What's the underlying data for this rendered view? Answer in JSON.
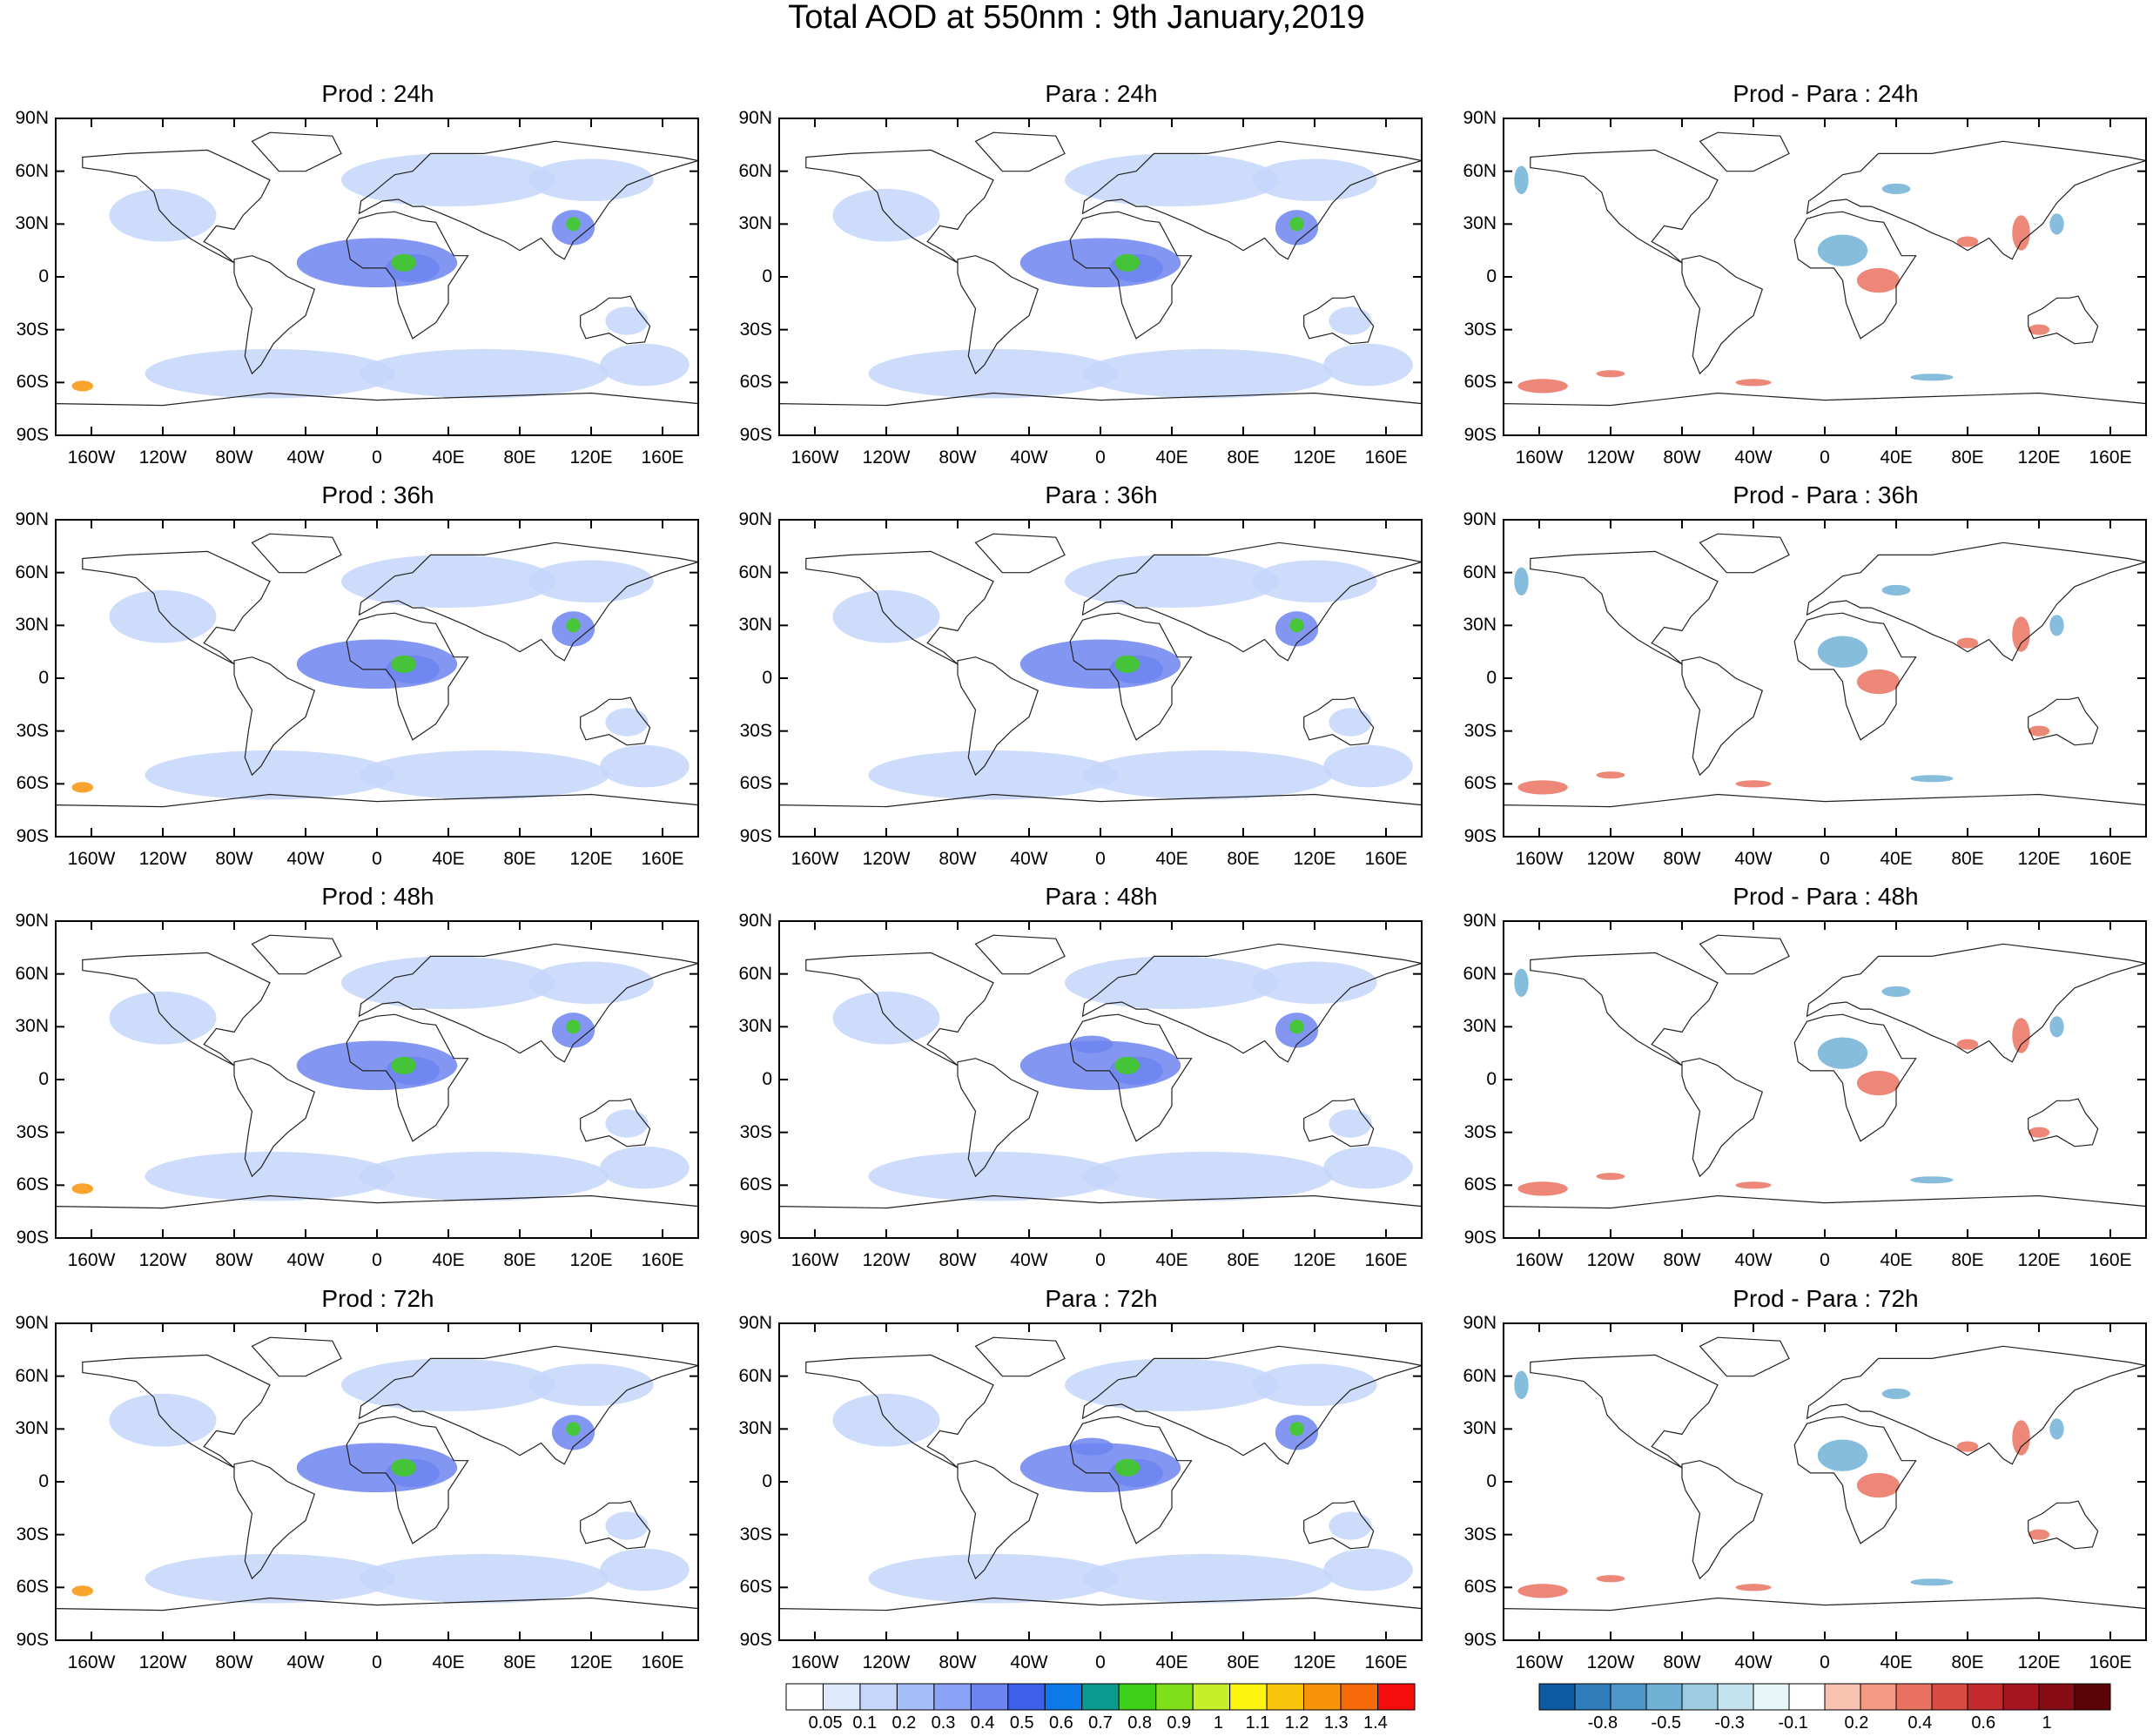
{
  "title": "Total AOD at 550nm : 9th January,2019",
  "lat_labels": [
    "90N",
    "60N",
    "30N",
    "0",
    "30S",
    "60S",
    "90S"
  ],
  "lon_labels": [
    "160W",
    "120W",
    "80W",
    "40W",
    "0",
    "40E",
    "80E",
    "120E",
    "160E"
  ],
  "rows": [
    {
      "panels": [
        "Prod : 24h",
        "Para : 24h",
        "Prod - Para : 24h"
      ]
    },
    {
      "panels": [
        "Prod : 36h",
        "Para : 36h",
        "Prod - Para : 36h"
      ]
    },
    {
      "panels": [
        "Prod : 48h",
        "Para : 48h",
        "Prod - Para : 48h"
      ]
    },
    {
      "panels": [
        "Prod : 72h",
        "Para : 72h",
        "Prod - Para : 72h"
      ]
    }
  ],
  "colorbar_aod": {
    "labels": [
      "0.05",
      "0.1",
      "0.2",
      "0.3",
      "0.4",
      "0.5",
      "0.6",
      "0.7",
      "0.8",
      "0.9",
      "1",
      "1.1",
      "1.2",
      "1.3",
      "1.4"
    ],
    "colors": [
      "#ffffff",
      "#dfe9fc",
      "#c6d6fb",
      "#a6bef9",
      "#8aa3f6",
      "#6d84f0",
      "#3d5fea",
      "#0d78e8",
      "#0b9a8e",
      "#3ecf19",
      "#7fe01a",
      "#c7ee2a",
      "#fcf40f",
      "#f8c50b",
      "#f7940a",
      "#f76a0a",
      "#f40d0a"
    ]
  },
  "colorbar_diff": {
    "labels": [
      "-0.8",
      "-0.5",
      "-0.3",
      "-0.1",
      "0.2",
      "0.4",
      "0.6",
      "1"
    ],
    "colors": [
      "#0b5aa2",
      "#2f7cbb",
      "#4e97c9",
      "#71b1d6",
      "#9dcbe2",
      "#c5e3ee",
      "#e8f5f9",
      "#ffffff",
      "#f8c1b0",
      "#f59a84",
      "#ea7260",
      "#d94a42",
      "#c32a2e",
      "#a6141f",
      "#860b15",
      "#5c0308"
    ]
  },
  "colors": {
    "aod_low": "#c6d6fb",
    "aod_mid": "#6d84f0",
    "aod_high": "#3ecf19",
    "aod_peak": "#f7940a",
    "diff_neg": "#71b1d6",
    "diff_pos": "#ea7260"
  }
}
